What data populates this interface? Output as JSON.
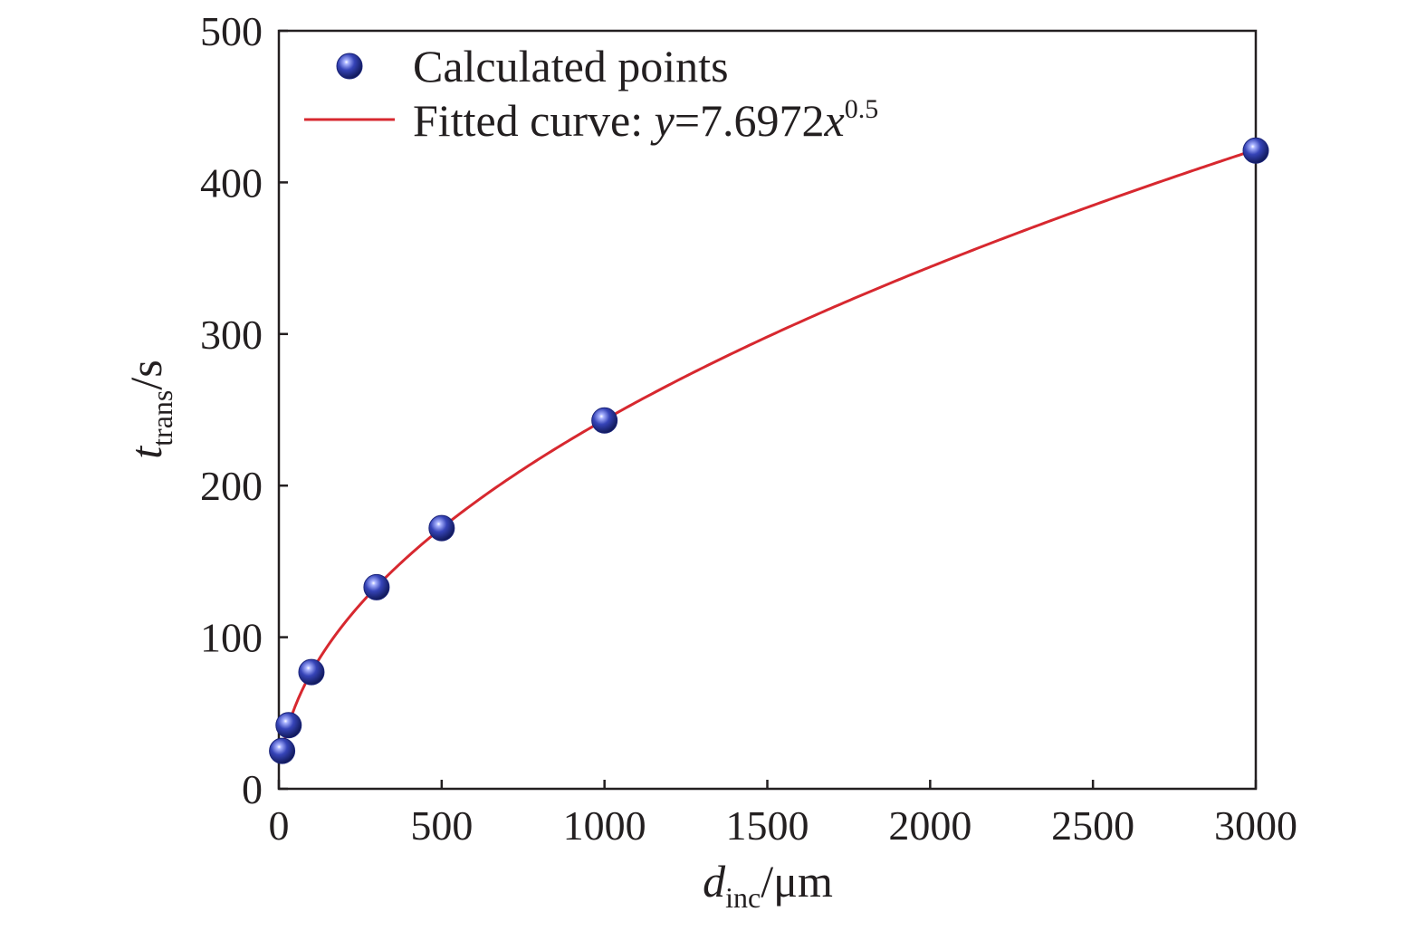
{
  "chart_data": {
    "type": "scatter",
    "x_axis": {
      "label_var": "d",
      "label_sub": "inc",
      "label_unit": "/μm",
      "range": [
        0,
        3000
      ],
      "ticks": [
        0,
        500,
        1000,
        1500,
        2000,
        2500,
        3000
      ],
      "tick_labels": [
        "0",
        "500",
        "1000",
        "1500",
        "2000",
        "2500",
        "3000"
      ]
    },
    "y_axis": {
      "label_var": "t",
      "label_sub": "trans",
      "label_unit": "/s",
      "range": [
        0,
        500
      ],
      "ticks": [
        0,
        100,
        200,
        300,
        400,
        500
      ],
      "tick_labels": [
        "0",
        "100",
        "200",
        "300",
        "400",
        "500"
      ]
    },
    "grid": false,
    "legend_position": "top-left",
    "series": [
      {
        "name": "Calculated points",
        "kind": "scatter",
        "color": "#2b3a9e",
        "x": [
          10,
          30,
          100,
          300,
          500,
          1000,
          3000
        ],
        "y": [
          25,
          42,
          77,
          133,
          172,
          243,
          421
        ]
      },
      {
        "name_prefix": "Fitted curve: ",
        "name_y": "y",
        "name_eq": "=7.6972",
        "name_x": "x",
        "name_exp": "0.5",
        "kind": "line",
        "color": "#d7282f",
        "coefficient": 7.6972,
        "exponent": 0.5
      }
    ]
  }
}
